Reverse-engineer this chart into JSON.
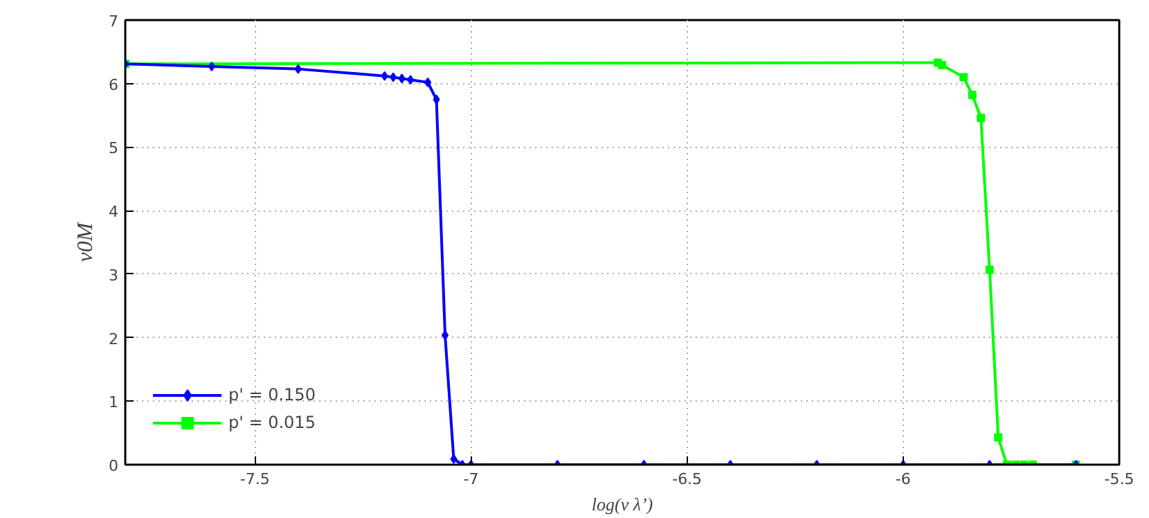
{
  "chart_data": {
    "type": "line",
    "xlabel": "log(ν λ’)",
    "ylabel": "v0M",
    "xlim": [
      -7.8,
      -5.5
    ],
    "ylim": [
      0,
      7
    ],
    "xticks": [
      -7.5,
      -7,
      -6.5,
      -6,
      -5.5
    ],
    "yticks": [
      0,
      1,
      2,
      3,
      4,
      5,
      6,
      7
    ],
    "grid": true,
    "legend": "bottom left",
    "line_style": "solid",
    "series": [
      {
        "name": "p' = 0.150",
        "color": "#0000ff",
        "marker": "diamond",
        "x": [
          -7.8,
          -7.6,
          -7.4,
          -7.2,
          -7.18,
          -7.16,
          -7.14,
          -7.1,
          -7.08,
          -7.06,
          -7.04,
          -7.02,
          -7.0,
          -6.8,
          -6.6,
          -6.4,
          -6.2,
          -6.0,
          -5.8,
          -5.6
        ],
        "values": [
          6.31,
          6.27,
          6.23,
          6.12,
          6.1,
          6.08,
          6.06,
          6.02,
          5.75,
          2.04,
          0.09,
          0,
          0,
          0,
          0,
          0,
          0,
          0,
          0,
          0
        ]
      },
      {
        "name": "p' = 0.015",
        "color": "#00ff00",
        "marker": "square",
        "x": [
          -7.8,
          -5.92,
          -5.91,
          -5.86,
          -5.84,
          -5.82,
          -5.8,
          -5.78,
          -5.76,
          -5.74,
          -5.72,
          -5.7,
          -5.6
        ],
        "values": [
          6.31,
          6.33,
          6.29,
          6.1,
          5.82,
          5.46,
          3.07,
          0.43,
          0,
          0,
          0,
          0,
          0
        ]
      }
    ]
  }
}
